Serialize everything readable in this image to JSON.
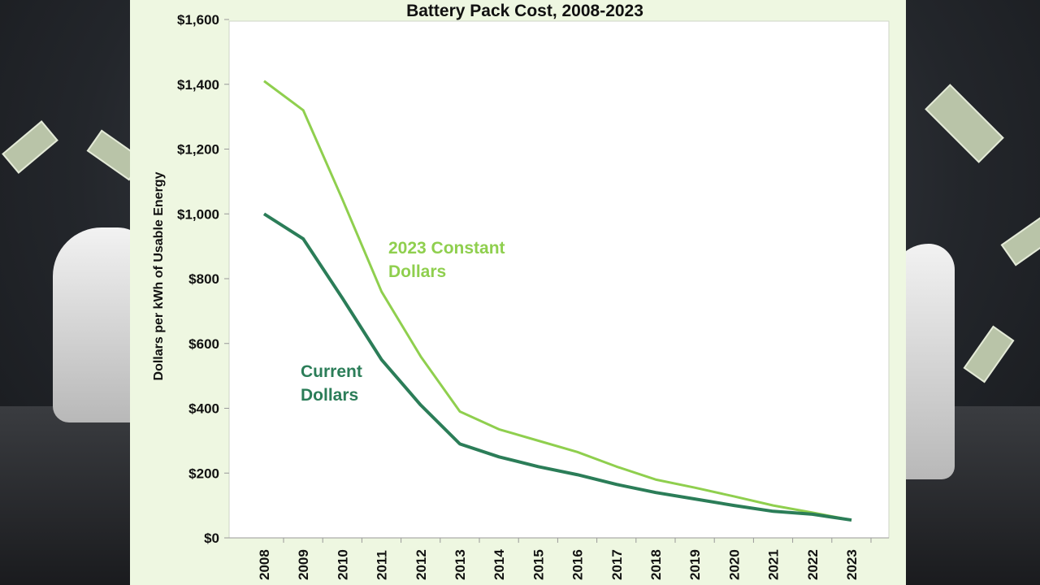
{
  "chart_data": {
    "type": "line",
    "title": "Battery Pack Cost, 2008-2023",
    "xlabel": "",
    "ylabel": "Dollars per kWh of Usable Energy",
    "x": [
      2008,
      2009,
      2010,
      2011,
      2012,
      2013,
      2014,
      2015,
      2016,
      2017,
      2018,
      2019,
      2020,
      2021,
      2022,
      2023
    ],
    "x_tick_labels": [
      "2008",
      "2009",
      "2010",
      "2011",
      "2012",
      "2013",
      "2014",
      "2015",
      "2016",
      "2017",
      "2018",
      "2019",
      "2020",
      "2021",
      "2022",
      "2023"
    ],
    "ylim": [
      0,
      1600
    ],
    "y_tick_labels": [
      "$0",
      "$200",
      "$400",
      "$600",
      "$800",
      "$1,000",
      "$1,200",
      "$1,400",
      "$1,600"
    ],
    "y_ticks": [
      0,
      200,
      400,
      600,
      800,
      1000,
      1200,
      1400,
      1600
    ],
    "grid": false,
    "series": [
      {
        "name": "2023 Constant Dollars",
        "name_lines": [
          "2023 Constant",
          "Dollars"
        ],
        "color": "#8fcf4e",
        "values": [
          1410,
          1320,
          1045,
          760,
          560,
          390,
          335,
          300,
          265,
          220,
          180,
          155,
          128,
          100,
          78,
          55
        ]
      },
      {
        "name": "Current Dollars",
        "name_lines": [
          "Current",
          "Dollars"
        ],
        "color": "#2b7d58",
        "values": [
          1000,
          923,
          740,
          550,
          410,
          290,
          250,
          220,
          195,
          165,
          140,
          120,
          100,
          82,
          73,
          55
        ]
      }
    ]
  }
}
